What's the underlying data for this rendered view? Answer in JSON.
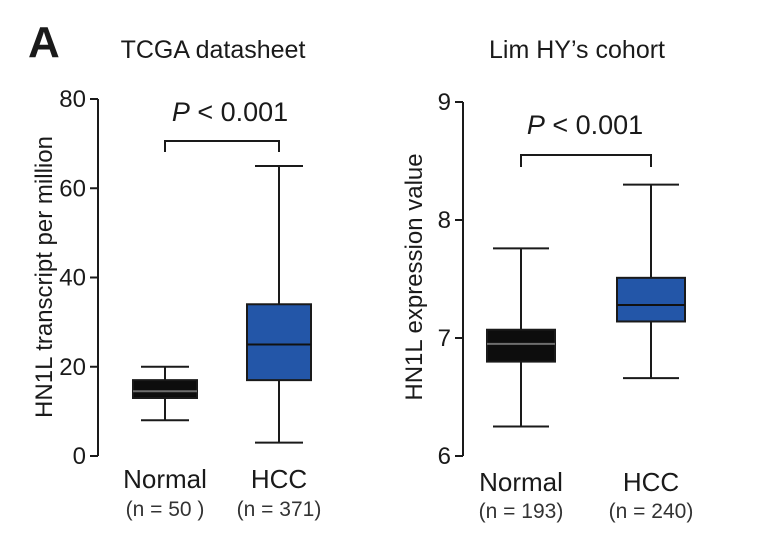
{
  "panel_label": "A",
  "chart_data": [
    {
      "type": "box",
      "title": "TCGA datasheet",
      "xlabel": "",
      "ylabel": "HN1L transcript per million",
      "ylim": [
        0,
        80
      ],
      "yticks": [
        "0",
        "20",
        "40",
        "60",
        "80"
      ],
      "categories": [
        "Normal",
        "HCC"
      ],
      "counts": [
        "(n = 50 )",
        "(n = 371)"
      ],
      "boxes": [
        {
          "name": "Normal",
          "min": 8,
          "q1": 13,
          "median": 14.5,
          "q3": 17,
          "max": 20,
          "color": "#0d0d0d",
          "median_color": "#6e6e6e"
        },
        {
          "name": "HCC",
          "min": 3,
          "q1": 17,
          "median": 25,
          "q3": 34,
          "max": 65,
          "color": "#2356a8",
          "median_color": "#111111"
        }
      ],
      "annotation": {
        "p_label": "P",
        "p_text": " < 0.001"
      },
      "grid": false
    },
    {
      "type": "box",
      "title": "Lim HY’s cohort",
      "xlabel": "",
      "ylabel": "HN1L expression value",
      "ylim": [
        6,
        9
      ],
      "yticks": [
        "6",
        "7",
        "8",
        "9"
      ],
      "categories": [
        "Normal",
        "HCC"
      ],
      "counts": [
        "(n = 193)",
        "(n = 240)"
      ],
      "boxes": [
        {
          "name": "Normal",
          "min": 6.25,
          "q1": 6.8,
          "median": 6.95,
          "q3": 7.07,
          "max": 7.76,
          "color": "#0d0d0d",
          "median_color": "#6e6e6e"
        },
        {
          "name": "HCC",
          "min": 6.66,
          "q1": 7.14,
          "median": 7.28,
          "q3": 7.51,
          "max": 8.3,
          "color": "#2356a8",
          "median_color": "#111111"
        }
      ],
      "annotation": {
        "p_label": "P",
        "p_text": " < 0.001"
      },
      "grid": false
    }
  ]
}
